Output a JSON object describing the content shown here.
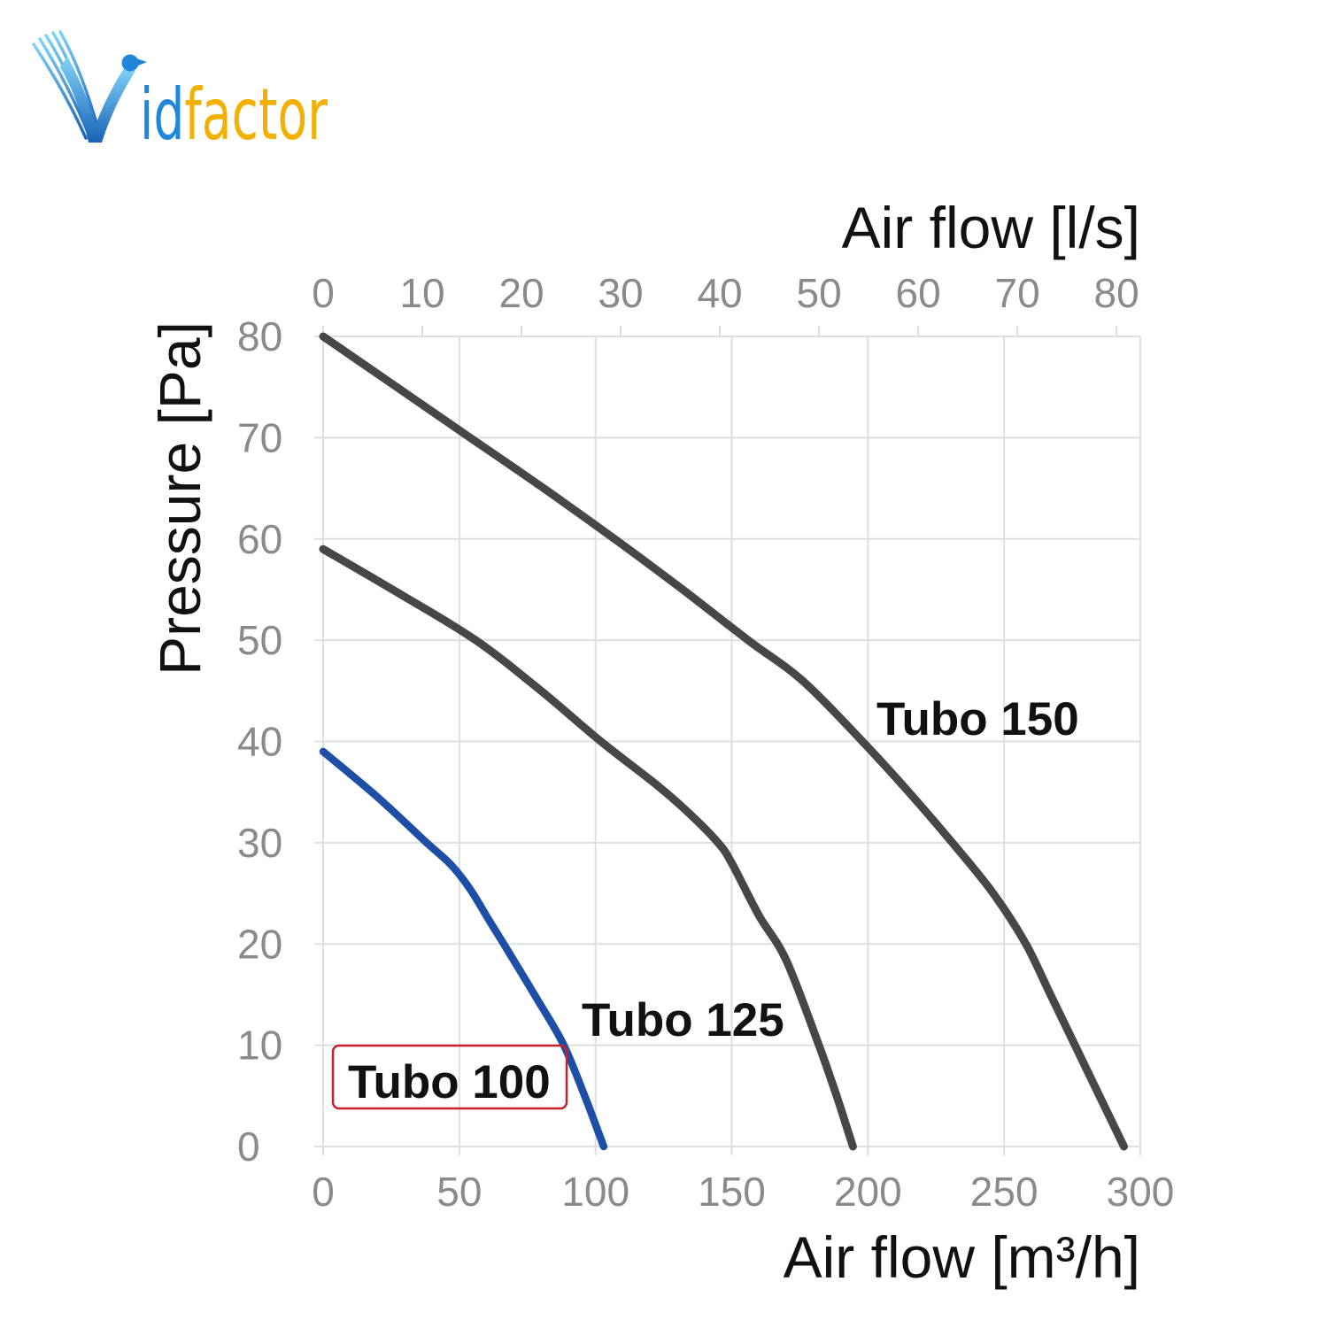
{
  "logo": {
    "mark_letter": "V",
    "text_blue": "id",
    "text_gold": "factor",
    "colors": {
      "mark_light": "#7fd3f7",
      "mark_dark": "#1a62b8",
      "blue": "#1f86d8",
      "gold": "#f4b000"
    }
  },
  "chart_data": {
    "type": "line",
    "xlabel": "Air flow [m³/h]",
    "x2label": "Air flow [l/s]",
    "ylabel": "Pressure [Pa]",
    "xlim": [
      0,
      300
    ],
    "x2lim": [
      0,
      82.4
    ],
    "ylim": [
      0,
      80
    ],
    "x_ticks": [
      0,
      50,
      100,
      150,
      200,
      250,
      300
    ],
    "x2_ticks": [
      0,
      10,
      20,
      30,
      40,
      50,
      60,
      70,
      80
    ],
    "y_ticks": [
      0,
      10,
      20,
      30,
      40,
      50,
      60,
      70,
      80
    ],
    "grid": true,
    "colors": {
      "grid": "#dfdfdf",
      "tick_label": "#8a8a8a",
      "axis_title": "#111111",
      "series_label": "#111111",
      "highlight": "#c8202f"
    },
    "series": [
      {
        "name": "Tubo 150",
        "color": "#474747",
        "x": [
          0,
          27,
          54,
          81,
          107,
          132,
          156,
          176,
          198,
          215,
          231,
          246,
          258,
          267,
          276,
          285,
          294
        ],
        "y": [
          80,
          75,
          70,
          65,
          60,
          55,
          50,
          46,
          40,
          35,
          30,
          25,
          20,
          15,
          10,
          5,
          0
        ]
      },
      {
        "name": "Tubo 125",
        "color": "#474747",
        "x": [
          0,
          28,
          56,
          80,
          102,
          122,
          134,
          145,
          150,
          160,
          170,
          182,
          188.5,
          194.5
        ],
        "y": [
          59,
          54.6,
          50,
          45,
          40,
          35.8,
          33,
          30,
          28,
          22.8,
          18.4,
          10,
          5,
          0
        ]
      },
      {
        "name": "Tubo 100",
        "color": "#1f4ea6",
        "highlighted": true,
        "x": [
          0,
          20,
          38,
          47,
          54,
          61,
          67,
          78,
          88,
          96,
          103
        ],
        "y": [
          39,
          34.5,
          30,
          27.8,
          25.4,
          22.3,
          19.7,
          14.8,
          10.2,
          5,
          0
        ]
      }
    ]
  }
}
